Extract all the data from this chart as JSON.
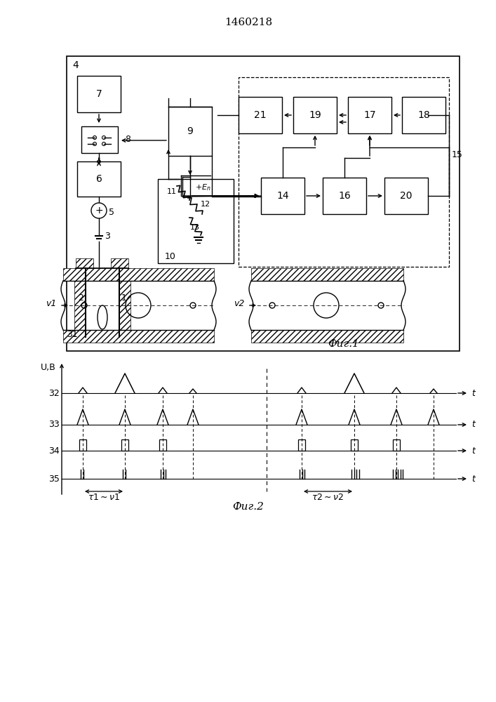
{
  "title": "1460218",
  "fig1_label": "Фиг.1",
  "fig2_label": "Фиг.2",
  "bg_color": "#ffffff",
  "lc": "#000000"
}
